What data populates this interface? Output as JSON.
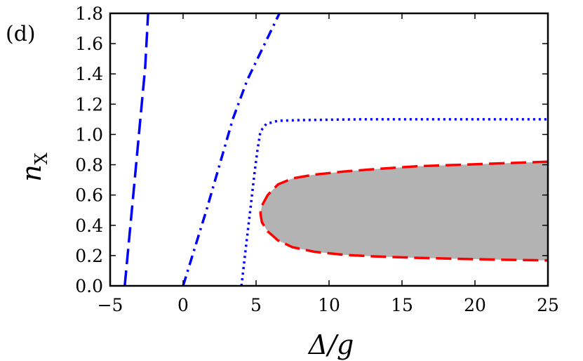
{
  "panel_label": "(d)",
  "chart_data": {
    "type": "line",
    "xlabel": "Δ/g",
    "ylabel_main": "n",
    "ylabel_sub": "X",
    "xlim": [
      -5,
      25
    ],
    "ylim": [
      0,
      1.8
    ],
    "x_ticks": [
      -5,
      0,
      5,
      10,
      15,
      20,
      25
    ],
    "x_tick_labels": [
      "−5",
      "0",
      "5",
      "10",
      "15",
      "20",
      "25"
    ],
    "y_ticks": [
      0.0,
      0.2,
      0.4,
      0.6,
      0.8,
      1.0,
      1.2,
      1.4,
      1.6,
      1.8
    ],
    "y_tick_labels": [
      "0.0",
      "0.2",
      "0.4",
      "0.6",
      "0.8",
      "1.0",
      "1.2",
      "1.4",
      "1.6",
      "1.8"
    ],
    "grid": false,
    "legend": "none",
    "series": [
      {
        "style": "dashed",
        "color": "#0000ff",
        "x": [
          -4.0,
          -3.65,
          -3.3,
          -2.95,
          -2.6,
          -2.4
        ],
        "y": [
          0.0,
          0.36,
          0.72,
          1.08,
          1.44,
          1.8
        ]
      },
      {
        "style": "dashdot",
        "color": "#0000ff",
        "x": [
          0.0,
          0.8,
          1.6,
          2.5,
          3.4,
          4.4,
          5.5,
          6.6
        ],
        "y": [
          0.0,
          0.25,
          0.5,
          0.8,
          1.1,
          1.36,
          1.58,
          1.8
        ]
      },
      {
        "style": "dotted",
        "color": "#0000ff",
        "x": [
          4.0,
          4.3,
          4.6,
          4.9,
          5.1,
          5.3,
          5.7,
          6.5,
          8.0,
          12.0,
          20.0,
          25.0
        ],
        "y": [
          0.0,
          0.25,
          0.5,
          0.75,
          0.9,
          1.02,
          1.07,
          1.09,
          1.095,
          1.1,
          1.1,
          1.1
        ]
      },
      {
        "style": "dashed",
        "color": "#ff0000",
        "fill": "#b3b3b3",
        "x": [
          25.0,
          22.0,
          19.0,
          16.0,
          13.0,
          11.0,
          9.0,
          7.5,
          6.5,
          5.8,
          5.4,
          5.3,
          5.4,
          5.8,
          6.5,
          7.5,
          9.0,
          11.0,
          13.0,
          16.0,
          19.0,
          22.0,
          25.0
        ],
        "y": [
          0.82,
          0.81,
          0.8,
          0.79,
          0.77,
          0.755,
          0.735,
          0.71,
          0.67,
          0.6,
          0.53,
          0.48,
          0.42,
          0.36,
          0.3,
          0.255,
          0.225,
          0.205,
          0.195,
          0.185,
          0.178,
          0.172,
          0.168
        ]
      }
    ]
  }
}
